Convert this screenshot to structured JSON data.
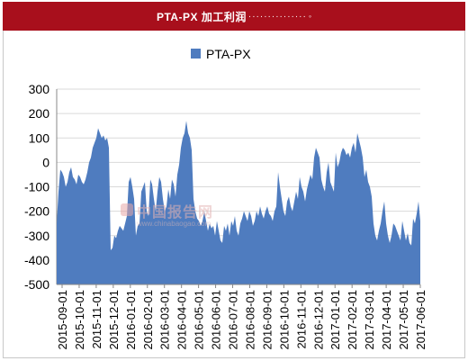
{
  "banner": {
    "title": "PTA-PX 加工利润",
    "dots": "···············",
    "tail": "◦"
  },
  "watermark": {
    "cn": "中国报告网",
    "url": "www.chinabaogao.com"
  },
  "colors": {
    "banner": "#a80f1c",
    "area": "#4f7cbf",
    "grid": "#d9d9d9",
    "axis": "#000000"
  },
  "chart_data": {
    "type": "area",
    "series": [
      {
        "name": "PTA-PX",
        "values": [
          -250,
          -120,
          -30,
          -40,
          -60,
          -100,
          -80,
          -40,
          -20,
          -60,
          -70,
          -90,
          -50,
          -60,
          -80,
          -90,
          -70,
          -40,
          0,
          20,
          60,
          80,
          100,
          140,
          120,
          100,
          110,
          90,
          100,
          60,
          -360,
          -350,
          -300,
          -310,
          -280,
          -260,
          -270,
          -280,
          -250,
          -220,
          -80,
          -60,
          -100,
          -150,
          -300,
          -260,
          -250,
          -120,
          -100,
          -80,
          -200,
          -220,
          -70,
          -90,
          -150,
          -200,
          -120,
          -60,
          -80,
          -150,
          -200,
          -180,
          -110,
          -150,
          -70,
          -90,
          -140,
          -50,
          -10,
          60,
          100,
          120,
          170,
          120,
          100,
          50,
          -150,
          -200,
          -230,
          -240,
          -260,
          -240,
          -200,
          -240,
          -280,
          -250,
          -270,
          -260,
          -300,
          -240,
          -280,
          -320,
          -330,
          -260,
          -280,
          -250,
          -300,
          -240,
          -260,
          -220,
          -280,
          -300,
          -250,
          -230,
          -200,
          -220,
          -240,
          -200,
          -220,
          -260,
          -240,
          -200,
          -220,
          -180,
          -210,
          -230,
          -200,
          -180,
          -210,
          -220,
          -240,
          -200,
          -180,
          -40,
          -100,
          -150,
          -200,
          -220,
          -160,
          -140,
          -180,
          -200,
          -160,
          -120,
          -150,
          -60,
          -100,
          -120,
          -160,
          -110,
          -80,
          -50,
          -70,
          20,
          60,
          40,
          20,
          -70,
          -100,
          -120,
          -40,
          0,
          -80,
          -100,
          -120,
          40,
          -20,
          0,
          40,
          60,
          50,
          30,
          40,
          20,
          60,
          80,
          40,
          120,
          90,
          60,
          20,
          -60,
          -30,
          -80,
          -100,
          -140,
          -250,
          -300,
          -320,
          -280,
          -250,
          -200,
          -160,
          -250,
          -300,
          -330,
          -300,
          -250,
          -260,
          -280,
          -300,
          -320,
          -240,
          -280,
          -320,
          -290,
          -330,
          -340,
          -230,
          -250,
          -210,
          -160,
          -240
        ]
      }
    ],
    "x_ticks": [
      "2015-09-01",
      "2015-10-01",
      "2015-11-01",
      "2015-12-01",
      "2016-01-01",
      "2016-02-01",
      "2016-03-01",
      "2016-04-01",
      "2016-05-01",
      "2016-06-01",
      "2016-07-01",
      "2016-08-01",
      "2016-09-01",
      "2016-10-01",
      "2016-11-01",
      "2016-12-01",
      "2017-01-01",
      "2017-02-01",
      "2017-03-01",
      "2017-04-01",
      "2017-05-01",
      "2017-06-01"
    ],
    "ylim": [
      -500,
      300
    ],
    "y_ticks": [
      "300",
      "200",
      "100",
      "0",
      "-100",
      "-200",
      "-300",
      "-400",
      "-500"
    ],
    "grid": true,
    "legend": "top-center"
  }
}
